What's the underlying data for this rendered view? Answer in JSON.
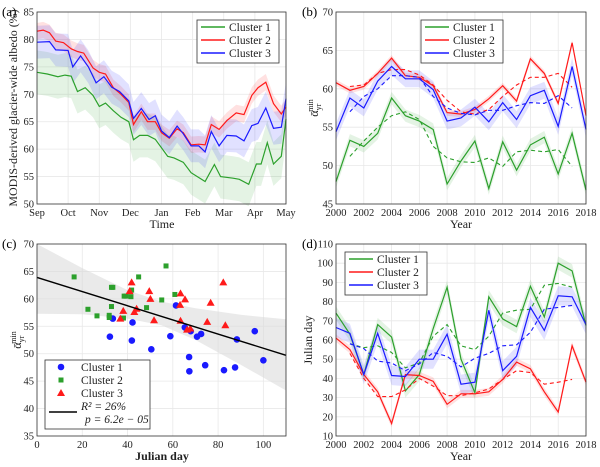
{
  "colors": {
    "cluster1": "#2ca02c",
    "cluster2": "#ff1a1a",
    "cluster3": "#1a1aff",
    "fit": "#000000",
    "ci": "#d9d9d9"
  },
  "chart_data": [
    {
      "panel": "(a)",
      "type": "line",
      "xlabel": "Time",
      "ylabel": "MODIS-derived glacier-wide albedo (%)",
      "ylim": [
        50,
        85
      ],
      "yticks": [
        50,
        55,
        60,
        65,
        70,
        75,
        80,
        85
      ],
      "xticks": [
        "Sep",
        "Oct",
        "Nov",
        "Dec",
        "Jan",
        "Feb",
        "Mar",
        "Apr",
        "May"
      ],
      "grid": true,
      "legend": "top-right",
      "series": [
        {
          "name": "Cluster 1",
          "color": "#2ca02c",
          "band": 4,
          "x": [
            0,
            0.33,
            0.67,
            0.9,
            1.1,
            1.3,
            1.55,
            1.8,
            2,
            2.2,
            2.45,
            2.7,
            2.95,
            3.1,
            3.3,
            3.55,
            3.8,
            4.2,
            4.4,
            4.7,
            4.95,
            5.4,
            5.7,
            5.9,
            6.3,
            6.5,
            6.8,
            7.05,
            7.2,
            7.4,
            7.6,
            7.85,
            8
          ],
          "y": [
            74,
            73.7,
            73.2,
            73.5,
            73.3,
            70.5,
            71.2,
            69.8,
            67.8,
            68.4,
            67,
            65.8,
            65,
            61.7,
            62.5,
            62.5,
            61.8,
            58.7,
            58.4,
            57.6,
            55.7,
            54.1,
            57.2,
            55,
            54.7,
            54.5,
            53.6,
            57.3,
            57.3,
            61.2,
            57.3,
            58.7,
            65.5
          ]
        },
        {
          "name": "Cluster 2",
          "color": "#ff1a1a",
          "band": 1.5,
          "x": [
            0,
            0.2,
            0.4,
            0.6,
            0.85,
            1.1,
            1.3,
            1.5,
            1.8,
            2,
            2.2,
            2.45,
            2.7,
            2.95,
            3.1,
            3.35,
            3.55,
            3.8,
            4,
            4.25,
            4.5,
            4.7,
            4.95,
            5.2,
            5.4,
            5.6,
            5.85,
            6.1,
            6.4,
            6.65,
            6.9,
            7.1,
            7.35,
            7.6,
            7.85,
            8
          ],
          "y": [
            81.5,
            81.7,
            81.2,
            79.7,
            79.4,
            78.3,
            77.8,
            77.5,
            74.8,
            74,
            73.7,
            71.2,
            70,
            68.5,
            64.5,
            66.8,
            65,
            65,
            63,
            62,
            63.7,
            63,
            60.8,
            60.9,
            60.8,
            64.5,
            63.6,
            65.2,
            66.6,
            66.3,
            69.8,
            71.2,
            72.2,
            68.3,
            66.4,
            67.7
          ]
        },
        {
          "name": "Cluster 3",
          "color": "#1a1aff",
          "band": 3,
          "x": [
            0,
            0.4,
            0.6,
            1,
            1.15,
            1.4,
            1.65,
            1.9,
            2.15,
            2.4,
            2.65,
            2.95,
            3.1,
            3.35,
            3.6,
            3.8,
            4,
            4.25,
            4.5,
            4.7,
            4.95,
            5.2,
            5.4,
            5.6,
            5.85,
            6.1,
            6.4,
            6.65,
            6.9,
            7.1,
            7.35,
            7.6,
            7.85,
            8
          ],
          "y": [
            79.5,
            79.6,
            78.1,
            78,
            75,
            77,
            75,
            72.1,
            73.2,
            71.3,
            70.5,
            68.8,
            65.6,
            67.4,
            65.4,
            66.1,
            63.3,
            62.1,
            64.2,
            62.8,
            60.6,
            60.6,
            59.5,
            63.2,
            60.6,
            62.5,
            62.4,
            61.5,
            64.3,
            64.7,
            67.5,
            63.8,
            64,
            69.2
          ]
        }
      ]
    },
    {
      "panel": "(b)",
      "type": "line",
      "xlabel": "Year",
      "ylabel": {
        "base": "ᾱ",
        "sub": "yr",
        "sup": "min"
      },
      "ylim": [
        45,
        70
      ],
      "xlim": [
        2000,
        2018
      ],
      "yticks": [
        45,
        50,
        55,
        60,
        65,
        70
      ],
      "xticks": [
        2000,
        2002,
        2004,
        2006,
        2008,
        2010,
        2012,
        2014,
        2016,
        2018
      ],
      "grid": true,
      "legend": "top-center",
      "series": [
        {
          "name": "Cluster 1",
          "color": "#2ca02c",
          "band": 0.8,
          "x0": 2000,
          "y": [
            47.9,
            53.3,
            52.5,
            54.2,
            58.8,
            56.5,
            55.8,
            54.7,
            47.6,
            50.6,
            53.2,
            47,
            53.1,
            49.4,
            52.7,
            53.7,
            48.9,
            54.2,
            46.8
          ],
          "dashed_x0": 2001,
          "dashed": [
            51.2,
            53.2,
            55,
            56.5,
            57,
            56,
            52.5,
            51,
            50.5,
            50.4,
            51,
            49.9,
            51.8,
            52,
            51.8,
            52.1,
            49.9
          ]
        },
        {
          "name": "Cluster 2",
          "color": "#ff1a1a",
          "band": 0.4,
          "x0": 2000,
          "y": [
            60.8,
            59.8,
            60.3,
            62,
            64,
            61.7,
            61.5,
            60.4,
            56.9,
            56.7,
            57.3,
            58.7,
            60.4,
            58.4,
            63.9,
            62,
            58.1,
            66,
            56.5
          ],
          "dashed_x0": 2001,
          "dashed": [
            60.3,
            60.5,
            62,
            62.5,
            62.5,
            61.8,
            60.5,
            58.5,
            57,
            56.7,
            57.3,
            59,
            60.5,
            61.5,
            61.5,
            62,
            60.2
          ]
        },
        {
          "name": "Cluster 3",
          "color": "#1a1aff",
          "band": 1.1,
          "x0": 2000,
          "y": [
            54.4,
            58.8,
            57.5,
            61,
            62.9,
            61.3,
            61.3,
            59.9,
            55.8,
            56.2,
            57.6,
            55.7,
            58.2,
            56,
            59.1,
            59.8,
            55.1,
            62.9,
            54.7
          ],
          "dashed_x0": 2001,
          "dashed": [
            57,
            59,
            60,
            61.7,
            61.7,
            61.5,
            59,
            57.5,
            56.8,
            56.6,
            57.2,
            57.2,
            57.8,
            58.2,
            58.1,
            59.1,
            57.5
          ]
        }
      ]
    },
    {
      "panel": "(c)",
      "type": "scatter",
      "xlabel": "Julian day",
      "ylabel": {
        "base": "ᾱ",
        "sub": "yr",
        "sup": "min"
      },
      "xlim": [
        0,
        110
      ],
      "ylim": [
        35,
        70
      ],
      "xticks": [
        0,
        20,
        40,
        60,
        80,
        100
      ],
      "yticks": [
        35,
        40,
        45,
        50,
        55,
        60,
        65,
        70
      ],
      "grid": true,
      "legend": "bottom-left",
      "series": [
        {
          "name": "Cluster 1",
          "marker": "circle",
          "color": "#1a1aff",
          "points": [
            [
              32.2,
              53.1
            ],
            [
              33.5,
              56.4
            ],
            [
              42.2,
              55.7
            ],
            [
              41.9,
              52.4
            ],
            [
              50.5,
              50.8
            ],
            [
              58.9,
              53.2
            ],
            [
              61.4,
              58.8
            ],
            [
              65.3,
              54.8
            ],
            [
              67.9,
              54.1
            ],
            [
              67.2,
              49.4
            ],
            [
              67.3,
              46.8
            ],
            [
              70.7,
              53.1
            ],
            [
              72.5,
              53.6
            ],
            [
              74.3,
              47.9
            ],
            [
              82.6,
              47
            ],
            [
              87.5,
              47.5
            ],
            [
              88.3,
              52.6
            ],
            [
              96.2,
              54.1
            ],
            [
              100,
              48.8
            ]
          ]
        },
        {
          "name": "Cluster 2",
          "marker": "square",
          "color": "#2ca02c",
          "points": [
            [
              16.4,
              64
            ],
            [
              22.5,
              58.1
            ],
            [
              26.5,
              56.9
            ],
            [
              31.9,
              57
            ],
            [
              31.9,
              56.6
            ],
            [
              32.9,
              62.1
            ],
            [
              33.5,
              62.1
            ],
            [
              32.9,
              58.6
            ],
            [
              38.2,
              56.5
            ],
            [
              38.5,
              60.5
            ],
            [
              39.3,
              60.5
            ],
            [
              41.5,
              60.4
            ],
            [
              41.8,
              61.6
            ],
            [
              44.9,
              64
            ],
            [
              48.4,
              58.4
            ],
            [
              55.1,
              59.8
            ],
            [
              57,
              66
            ],
            [
              60.9,
              60.8
            ]
          ]
        },
        {
          "name": "Cluster 3",
          "marker": "triangle",
          "color": "#ff1a1a",
          "points": [
            [
              36.8,
              56.4
            ],
            [
              38.1,
              57.8
            ],
            [
              40.9,
              61.4
            ],
            [
              41.8,
              63
            ],
            [
              43,
              57.6
            ],
            [
              44,
              58.2
            ],
            [
              49.6,
              61.4
            ],
            [
              50.1,
              60
            ],
            [
              51.7,
              56.1
            ],
            [
              63.4,
              56
            ],
            [
              63.2,
              58.9
            ],
            [
              63.4,
              61
            ],
            [
              65.4,
              59.9
            ],
            [
              66.3,
              54.4
            ],
            [
              67.7,
              54.6
            ],
            [
              76.7,
              59.3
            ],
            [
              75.2,
              55.8
            ],
            [
              82.3,
              63
            ],
            [
              83.2,
              55.2
            ]
          ]
        }
      ],
      "fit": {
        "intercept": 63.9,
        "slope": -0.129,
        "r2_label": "R² = 26%",
        "p_label": "p = 6.2e − 05",
        "ci": {
          "x": [
            0,
            20,
            40,
            55,
            70,
            90,
            110
          ],
          "upper": [
            70,
            65.6,
            61.6,
            59.5,
            58.3,
            57.1,
            56.3
          ],
          "lower": [
            57.3,
            57.2,
            56.4,
            55.2,
            52.5,
            48,
            43.3
          ]
        }
      }
    },
    {
      "panel": "(d)",
      "type": "line",
      "xlabel": "Year",
      "ylabel": "Julian day",
      "ylim": [
        10,
        110
      ],
      "xlim": [
        2000,
        2018
      ],
      "yticks": [
        10,
        20,
        30,
        40,
        50,
        60,
        70,
        80,
        90,
        100,
        110
      ],
      "xticks": [
        2000,
        2002,
        2004,
        2006,
        2008,
        2010,
        2012,
        2014,
        2016,
        2018
      ],
      "grid": true,
      "legend": "top-left",
      "series": [
        {
          "name": "Cluster 1",
          "color": "#2ca02c",
          "band": 3.5,
          "x0": 2000,
          "y": [
            74,
            63,
            42,
            68,
            61.5,
            33.5,
            42,
            66,
            87.5,
            50,
            32.5,
            82.5,
            71,
            67,
            88,
            72,
            100,
            96,
            67.5
          ],
          "dashed_x0": 2001,
          "dashed": [
            58,
            56,
            57,
            53.5,
            45.5,
            48,
            62,
            68,
            57,
            55,
            62,
            74,
            75.5,
            76,
            88.5,
            89.5,
            87.5
          ]
        },
        {
          "name": "Cluster 2",
          "color": "#ff1a1a",
          "band": 2,
          "x0": 2000,
          "y": [
            61,
            55,
            42,
            33,
            16.5,
            42,
            41.5,
            38.5,
            26.5,
            32,
            32,
            33,
            39.5,
            48.5,
            45,
            33,
            22.5,
            57,
            38
          ],
          "dashed_x0": 2001,
          "dashed": [
            53,
            40,
            30.5,
            30.5,
            34,
            40,
            36,
            31,
            31,
            32.5,
            34.5,
            39.5,
            44,
            43,
            37,
            38,
            39.5
          ]
        },
        {
          "name": "Cluster 3",
          "color": "#1a1aff",
          "band": 5,
          "x0": 2000,
          "y": [
            66.5,
            63.5,
            42,
            63.5,
            41.5,
            41,
            50,
            50,
            63,
            37,
            38,
            75.5,
            44,
            51.5,
            77,
            65,
            83,
            82.5,
            68
          ],
          "dashed_x0": 2001,
          "dashed": [
            58,
            55.5,
            49,
            48,
            44,
            47.5,
            53.5,
            51.5,
            46,
            50.5,
            53,
            57,
            57.5,
            64,
            76,
            77,
            78
          ]
        }
      ]
    }
  ]
}
